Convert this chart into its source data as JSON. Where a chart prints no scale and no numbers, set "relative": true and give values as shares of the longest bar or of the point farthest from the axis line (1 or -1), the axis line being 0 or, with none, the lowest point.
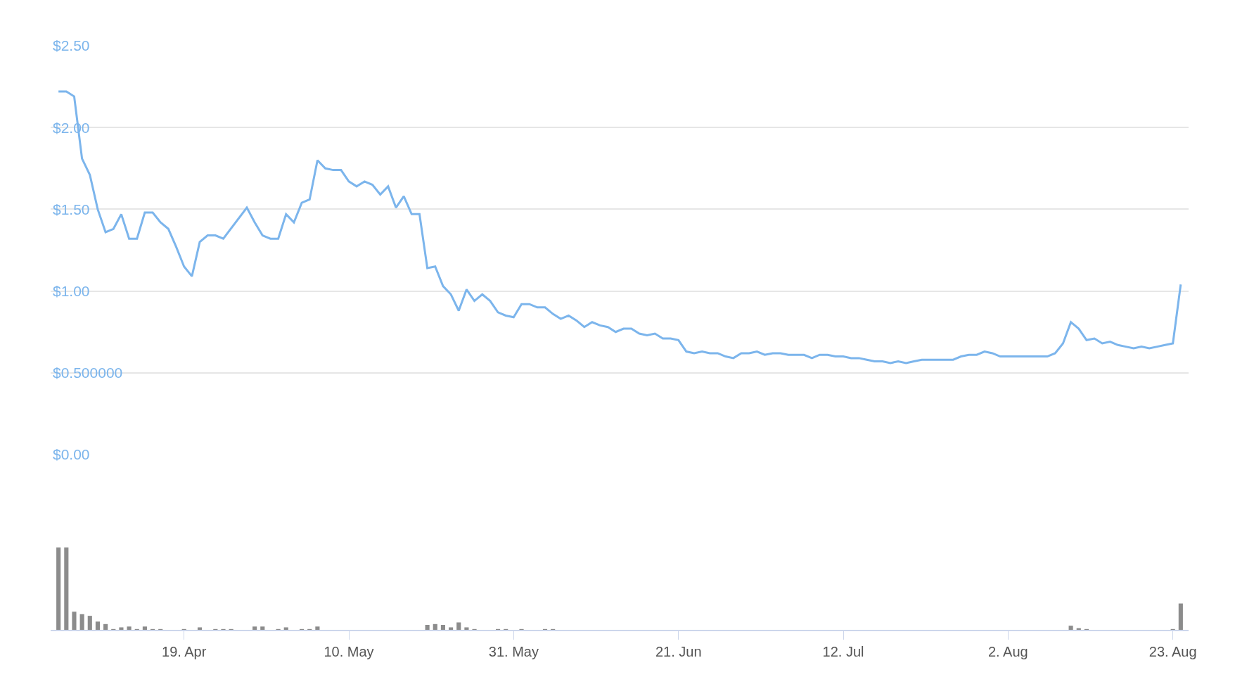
{
  "chart_data": [
    {
      "type": "line",
      "grid": "y",
      "tick_labels": "y",
      "xlim": [
        "--04-02",
        "--08-25"
      ],
      "ylim": [
        0,
        2.5
      ],
      "yticks": [
        {
          "value": 0,
          "label": "$0.00"
        },
        {
          "value": 0.5,
          "label": "$0.500000"
        },
        {
          "value": 1,
          "label": "$1.00"
        },
        {
          "value": 1.5,
          "label": "$1.50"
        },
        {
          "value": 2,
          "label": "$2.00"
        },
        {
          "value": 2.5,
          "label": "$2.50"
        }
      ],
      "x": [
        "--04-03",
        "--04-04",
        "--04-05",
        "--04-06",
        "--04-07",
        "--04-08",
        "--04-09",
        "--04-10",
        "--04-11",
        "--04-12",
        "--04-13",
        "--04-14",
        "--04-15",
        "--04-16",
        "--04-17",
        "--04-18",
        "--04-19",
        "--04-20",
        "--04-21",
        "--04-22",
        "--04-23",
        "--04-24",
        "--04-27",
        "--04-28",
        "--04-29",
        "--04-30",
        "--05-01",
        "--05-02",
        "--05-03",
        "--05-04",
        "--05-05",
        "--05-06",
        "--05-07",
        "--05-08",
        "--05-09",
        "--05-10",
        "--05-11",
        "--05-12",
        "--05-13",
        "--05-14",
        "--05-15",
        "--05-16",
        "--05-17",
        "--05-18",
        "--05-19",
        "--05-20",
        "--05-21",
        "--05-22",
        "--05-23",
        "--05-24",
        "--05-25",
        "--05-26",
        "--05-27",
        "--05-28",
        "--05-29",
        "--05-30",
        "--05-31",
        "--06-01",
        "--06-02",
        "--06-03",
        "--06-04",
        "--06-05",
        "--06-06",
        "--06-07",
        "--06-08",
        "--06-09",
        "--06-10",
        "--06-11",
        "--06-12",
        "--06-13",
        "--06-14",
        "--06-15",
        "--06-16",
        "--06-17",
        "--06-18",
        "--06-19",
        "--06-20",
        "--06-21",
        "--06-22",
        "--06-23",
        "--06-24",
        "--06-25",
        "--06-26",
        "--06-27",
        "--06-28",
        "--06-29",
        "--06-30",
        "--07-01",
        "--07-02",
        "--07-03",
        "--07-04",
        "--07-05",
        "--07-06",
        "--07-07",
        "--07-08",
        "--07-09",
        "--07-10",
        "--07-11",
        "--07-12",
        "--07-13",
        "--07-14",
        "--07-15",
        "--07-16",
        "--07-17",
        "--07-18",
        "--07-19",
        "--07-20",
        "--07-21",
        "--07-22",
        "--07-23",
        "--07-24",
        "--07-25",
        "--07-26",
        "--07-27",
        "--07-28",
        "--07-29",
        "--07-30",
        "--07-31",
        "--08-01",
        "--08-02",
        "--08-03",
        "--08-04",
        "--08-05",
        "--08-06",
        "--08-07",
        "--08-08",
        "--08-09",
        "--08-10",
        "--08-11",
        "--08-12",
        "--08-13",
        "--08-14",
        "--08-15",
        "--08-16",
        "--08-17",
        "--08-18",
        "--08-19",
        "--08-20",
        "--08-21",
        "--08-22",
        "--08-23",
        "--08-24"
      ],
      "series": [
        {
          "color": "#7cb5ec",
          "values": [
            2.22,
            2.22,
            2.19,
            1.81,
            1.71,
            1.5,
            1.36,
            1.38,
            1.47,
            1.32,
            1.32,
            1.48,
            1.48,
            1.42,
            1.38,
            1.27,
            1.15,
            1.09,
            1.3,
            1.34,
            1.34,
            1.32,
            1.51,
            1.42,
            1.34,
            1.32,
            1.32,
            1.47,
            1.42,
            1.54,
            1.56,
            1.8,
            1.75,
            1.74,
            1.74,
            1.67,
            1.64,
            1.67,
            1.65,
            1.59,
            1.64,
            1.51,
            1.58,
            1.47,
            1.47,
            1.14,
            1.15,
            1.03,
            0.98,
            0.88,
            1.01,
            0.94,
            0.98,
            0.94,
            0.87,
            0.85,
            0.84,
            0.92,
            0.92,
            0.9,
            0.9,
            0.86,
            0.83,
            0.85,
            0.82,
            0.78,
            0.81,
            0.79,
            0.78,
            0.75,
            0.77,
            0.77,
            0.74,
            0.73,
            0.74,
            0.71,
            0.71,
            0.7,
            0.63,
            0.62,
            0.63,
            0.62,
            0.62,
            0.6,
            0.59,
            0.62,
            0.62,
            0.63,
            0.61,
            0.62,
            0.62,
            0.61,
            0.61,
            0.61,
            0.59,
            0.61,
            0.61,
            0.6,
            0.6,
            0.59,
            0.59,
            0.58,
            0.57,
            0.57,
            0.56,
            0.57,
            0.56,
            0.57,
            0.58,
            0.58,
            0.58,
            0.58,
            0.58,
            0.6,
            0.61,
            0.61,
            0.63,
            0.62,
            0.6,
            0.6,
            0.6,
            0.6,
            0.6,
            0.6,
            0.6,
            0.62,
            0.68,
            0.81,
            0.77,
            0.7,
            0.71,
            0.68,
            0.69,
            0.67,
            0.66,
            0.65,
            0.66,
            0.65,
            0.66,
            0.67,
            0.68,
            1.04
          ]
        }
      ]
    },
    {
      "type": "bar",
      "relative": true,
      "tick_labels": "x",
      "xlim": [
        "--04-02",
        "--08-25"
      ],
      "xticks": [
        {
          "value": "--04-19",
          "label": "19. Apr"
        },
        {
          "value": "--05-10",
          "label": "10. May"
        },
        {
          "value": "--05-31",
          "label": "31. May"
        },
        {
          "value": "--06-21",
          "label": "21. Jun"
        },
        {
          "value": "--07-12",
          "label": "12. Jul"
        },
        {
          "value": "--08-02",
          "label": "2. Aug"
        },
        {
          "value": "--08-23",
          "label": "23. Aug"
        }
      ],
      "x": [
        "--04-03",
        "--04-04",
        "--04-05",
        "--04-06",
        "--04-07",
        "--04-08",
        "--04-09",
        "--04-10",
        "--04-11",
        "--04-12",
        "--04-13",
        "--04-14",
        "--04-15",
        "--04-16",
        "--04-19",
        "--04-21",
        "--04-23",
        "--04-24",
        "--04-25",
        "--04-28",
        "--04-29",
        "--05-01",
        "--05-02",
        "--05-04",
        "--05-05",
        "--05-06",
        "--05-20",
        "--05-21",
        "--05-22",
        "--05-23",
        "--05-24",
        "--05-25",
        "--05-26",
        "--05-29",
        "--05-30",
        "--06-01",
        "--06-04",
        "--06-05",
        "--08-10",
        "--08-11",
        "--08-12",
        "--08-23",
        "--08-24"
      ],
      "series": [
        {
          "color": "#8c8c8c",
          "values": [
            1,
            1,
            0.22,
            0.19,
            0.17,
            0.1,
            0.07,
            0.01,
            0.03,
            0.04,
            0.01,
            0.04,
            0.01,
            0.01,
            0.01,
            0.03,
            0.01,
            0.01,
            0.01,
            0.04,
            0.04,
            0.01,
            0.03,
            0.01,
            0.01,
            0.04,
            0.06,
            0.07,
            0.06,
            0.03,
            0.09,
            0.03,
            0.01,
            0.01,
            0.01,
            0.01,
            0.01,
            0.01,
            0.05,
            0.02,
            0.01,
            0.01,
            0.32
          ]
        }
      ]
    }
  ]
}
